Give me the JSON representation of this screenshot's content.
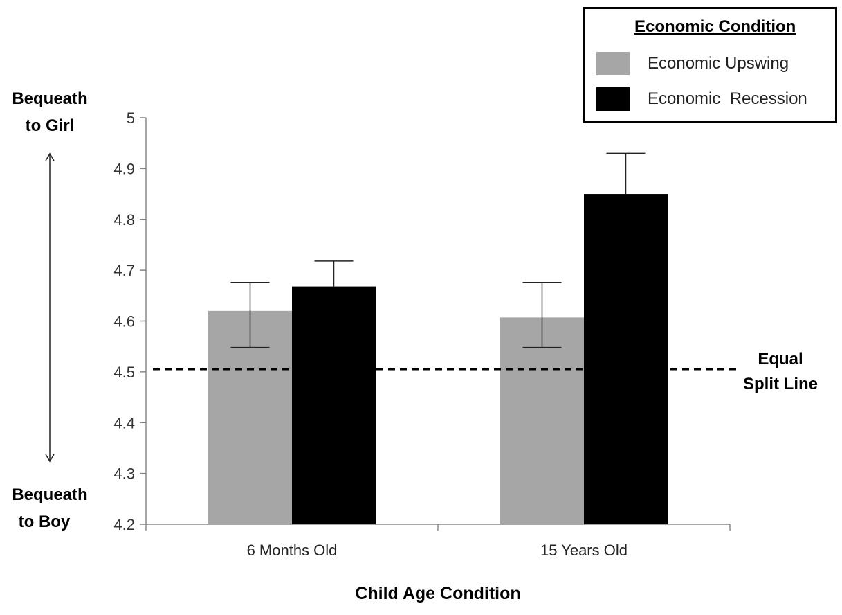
{
  "chart_data": {
    "type": "bar",
    "xlabel": "Child Age Condition",
    "ylabel": "",
    "ylim": [
      4.2,
      5
    ],
    "yticks": [
      "4.2",
      "4.3",
      "4.4",
      "4.5",
      "4.6",
      "4.7",
      "4.8",
      "4.9",
      "5"
    ],
    "categories": [
      "6 Months Old",
      "15 Years Old"
    ],
    "series": [
      {
        "name": "Economic Upswing",
        "color": "#a6a6a6",
        "values": [
          4.62,
          4.607
        ],
        "error_low": [
          4.548,
          4.548
        ],
        "error_high": [
          4.676,
          4.676
        ]
      },
      {
        "name": "Economic  Recession",
        "color": "#000000",
        "values": [
          4.668,
          4.85
        ],
        "error_low": [
          4.668,
          4.85
        ],
        "error_high": [
          4.718,
          4.93
        ]
      }
    ],
    "reference_line": {
      "value": 4.505,
      "style": "dashed",
      "label_line1": "Equal",
      "label_line2": "Split Line"
    },
    "legend": {
      "title": "Economic Condition",
      "placement": "top-right"
    },
    "axis_annotation": {
      "top_line1": "Bequeath",
      "top_line2": "to Girl",
      "bottom_line1": "Bequeath",
      "bottom_line2": "to Boy"
    },
    "grid": false
  }
}
